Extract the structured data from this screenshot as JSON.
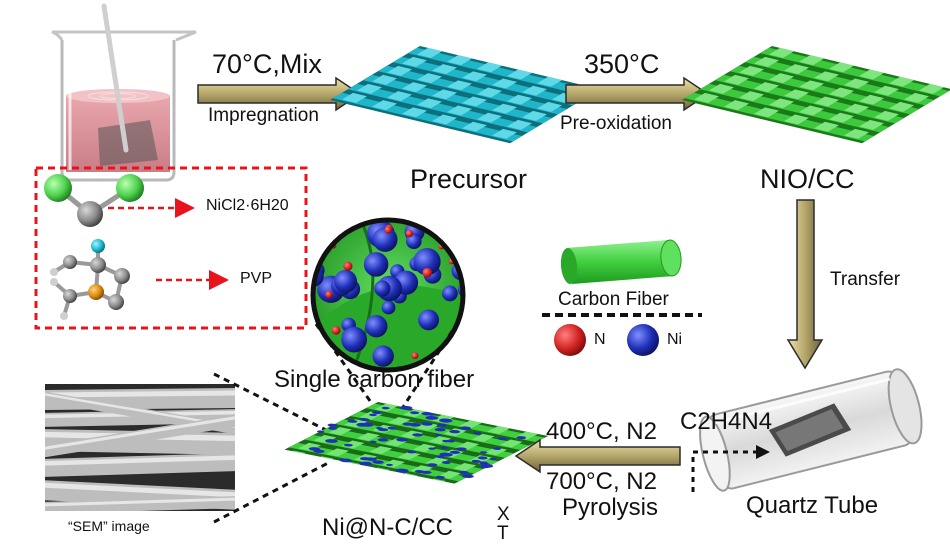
{
  "steps": {
    "impregnation_condition": "70°C,Mix",
    "impregnation_label": "Impregnation",
    "preoxidation_condition": "350°C",
    "preoxidation_label": "Pre-oxidation",
    "transfer_label": "Transfer",
    "pyrolysis_condition_upper": "400°C, N2",
    "pyrolysis_condition_lower": "700°C, N2",
    "pyrolysis_label": "Pyrolysis"
  },
  "products": {
    "precursor": "Precursor",
    "nio_cc": "NIO/CC",
    "final": "Ni@N-C/CC",
    "final_sup": "X",
    "final_sub": "T",
    "quartz_tube": "Quartz Tube",
    "gas": "C2H4N4"
  },
  "reagents": [
    {
      "name": "NiCl2·6H20"
    },
    {
      "name": "PVP"
    }
  ],
  "legend": {
    "carbon_fiber": "Carbon Fiber",
    "n": "N",
    "ni": "Ni"
  },
  "zoom_label": "Single carbon fiber",
  "sem_label": "“SEM”  image",
  "colors": {
    "cloth_precursor": "#20b6c9",
    "cloth_nio": "#3dc93d",
    "arrow_gold": "#b5a66a",
    "fiber_green": "#3fcf3f",
    "n_red": "#d42424",
    "ni_blue": "#1f2fb8",
    "dash_red": "#e8141b"
  }
}
